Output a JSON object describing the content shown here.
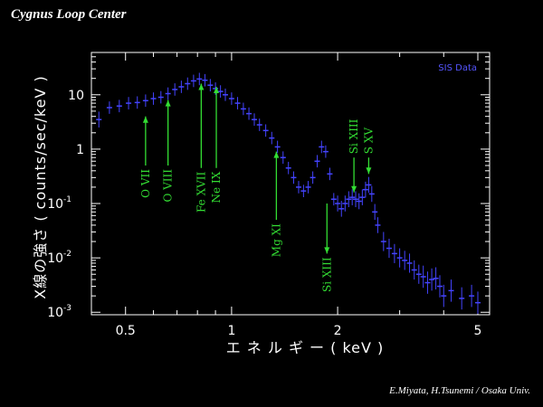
{
  "header": {
    "title": "Cygnus Loop Center"
  },
  "footer": {
    "credit": "E.Miyata, H.Tsunemi / Osaka Univ."
  },
  "chart_data": {
    "type": "scatter",
    "xlabel": "エ ネ ル ギ ー ( keV )",
    "ylabel": "X線の強さ ( counts/sec/keV )",
    "xscale": "log",
    "yscale": "log",
    "xlim": [
      0.4,
      5.4
    ],
    "ylim": [
      0.0009,
      60
    ],
    "x_ticks": [
      0.5,
      1,
      2,
      5
    ],
    "x_tick_labels": [
      "0.5",
      "1",
      "2",
      "5"
    ],
    "y_ticks": [
      0.001,
      0.01,
      0.1,
      1,
      10
    ],
    "y_tick_labels": [
      {
        "base": "10",
        "exp": "-3"
      },
      {
        "base": "10",
        "exp": "-2"
      },
      {
        "base": "10",
        "exp": "-1"
      },
      {
        "base": "1",
        "exp": ""
      },
      {
        "base": "10",
        "exp": ""
      }
    ],
    "grid": false,
    "legend": {
      "position": "top-right",
      "entries": [
        "SIS Data"
      ]
    },
    "series": [
      {
        "name": "SIS Data",
        "color": "#4444ff",
        "x": [
          0.42,
          0.45,
          0.48,
          0.51,
          0.54,
          0.57,
          0.6,
          0.63,
          0.66,
          0.69,
          0.72,
          0.75,
          0.78,
          0.81,
          0.84,
          0.87,
          0.9,
          0.93,
          0.96,
          1.0,
          1.04,
          1.08,
          1.12,
          1.16,
          1.2,
          1.25,
          1.3,
          1.35,
          1.4,
          1.45,
          1.5,
          1.55,
          1.6,
          1.65,
          1.7,
          1.75,
          1.8,
          1.85,
          1.9,
          1.95,
          2.0,
          2.05,
          2.1,
          2.15,
          2.2,
          2.25,
          2.3,
          2.35,
          2.4,
          2.45,
          2.5,
          2.55,
          2.6,
          2.7,
          2.8,
          2.9,
          3.0,
          3.1,
          3.2,
          3.3,
          3.4,
          3.5,
          3.6,
          3.7,
          3.8,
          3.9,
          4.0,
          4.2,
          4.5,
          4.8,
          5.0
        ],
        "y": [
          3.5,
          5.8,
          6.2,
          7.0,
          7.2,
          7.8,
          8.5,
          9.0,
          10.5,
          12.5,
          14.0,
          16.0,
          18.0,
          19.5,
          18.5,
          15.0,
          13.0,
          11.5,
          10.0,
          8.5,
          7.0,
          5.5,
          4.5,
          3.5,
          2.8,
          2.2,
          1.6,
          1.1,
          0.7,
          0.45,
          0.3,
          0.2,
          0.17,
          0.2,
          0.3,
          0.6,
          1.1,
          0.9,
          0.35,
          0.12,
          0.1,
          0.08,
          0.1,
          0.12,
          0.13,
          0.12,
          0.11,
          0.13,
          0.18,
          0.22,
          0.15,
          0.07,
          0.04,
          0.02,
          0.015,
          0.012,
          0.01,
          0.009,
          0.008,
          0.006,
          0.005,
          0.0045,
          0.0035,
          0.004,
          0.0042,
          0.003,
          0.002,
          0.0025,
          0.0018,
          0.002,
          0.0015
        ],
        "yerr": [
          0.4,
          0.3,
          0.3,
          0.3,
          0.3,
          0.3,
          0.3,
          0.3,
          0.3,
          0.3,
          0.3,
          0.3,
          0.3,
          0.3,
          0.3,
          0.3,
          0.3,
          0.3,
          0.3,
          0.3,
          0.3,
          0.3,
          0.3,
          0.3,
          0.3,
          0.3,
          0.3,
          0.3,
          0.3,
          0.3,
          0.3,
          0.3,
          0.3,
          0.3,
          0.3,
          0.3,
          0.3,
          0.3,
          0.3,
          0.3,
          0.4,
          0.4,
          0.4,
          0.4,
          0.4,
          0.4,
          0.4,
          0.4,
          0.4,
          0.4,
          0.4,
          0.4,
          0.4,
          0.5,
          0.5,
          0.5,
          0.5,
          0.5,
          0.5,
          0.5,
          0.5,
          0.6,
          0.6,
          0.6,
          0.6,
          0.6,
          0.6,
          0.6,
          0.6,
          0.6,
          0.6
        ]
      }
    ],
    "annotations": [
      {
        "label": "O VII",
        "x": 0.57,
        "y_from": 0.5,
        "y_to": 4.0,
        "text_side": "below"
      },
      {
        "label": "O VIII",
        "x": 0.66,
        "y_from": 0.5,
        "y_to": 8.0,
        "text_side": "below"
      },
      {
        "label": "Fe XVII",
        "x": 0.82,
        "y_from": 0.45,
        "y_to": 16.0,
        "text_side": "below"
      },
      {
        "label": "Ne IX",
        "x": 0.905,
        "y_from": 0.45,
        "y_to": 14.0,
        "text_side": "below"
      },
      {
        "label": "Mg XI",
        "x": 1.34,
        "y_from": 0.05,
        "y_to": 0.9,
        "text_side": "below"
      },
      {
        "label": "Si XIII",
        "x": 1.865,
        "y_from": 0.1,
        "y_to": 0.012,
        "text_side": "below"
      },
      {
        "label": "Si XIII",
        "x": 2.225,
        "y_from": 0.7,
        "y_to": 0.16,
        "text_side": "above"
      },
      {
        "label": "S XV",
        "x": 2.45,
        "y_from": 0.7,
        "y_to": 0.35,
        "text_side": "above"
      }
    ]
  }
}
